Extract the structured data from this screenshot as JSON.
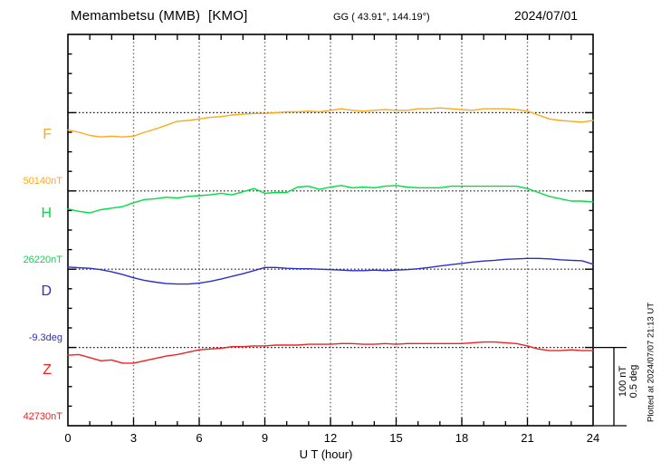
{
  "header": {
    "station_title": "Memambetsu (MMB)  [KMO]",
    "gg_coords": "GG ( 43.91°, 144.19°)",
    "date": "2024/07/01"
  },
  "axes": {
    "x_ticks": [
      "0",
      "3",
      "6",
      "9",
      "12",
      "15",
      "18",
      "21",
      "24"
    ],
    "x_label": "U T (hour)"
  },
  "scale_bar": {
    "label_nt": "100 nT",
    "label_deg": "0.5 deg"
  },
  "footer_note": "Plotted at 2024/07/07 21:13 UT",
  "chart_data": {
    "type": "line",
    "title": "Memambetsu (MMB) [KMO] magnetogram 2024/07/01",
    "xlabel": "U T (hour)",
    "x_range": [
      0,
      24
    ],
    "x_step": 0.5,
    "grid": "dotted vertical gridlines every 3 h; dotted horizontal baseline per component",
    "legend_position": "left margin, one colored label per trace",
    "scale_per_division": {
      "nT": 100,
      "deg": 0.5
    },
    "series": [
      {
        "name": "F",
        "label": "F",
        "baseline_label": "50140nT",
        "baseline_value": 50140,
        "unit": "nT",
        "color": "#ffa81e",
        "values": [
          50118,
          50115,
          50111,
          50109,
          50110,
          50109,
          50110,
          50115,
          50119,
          50124,
          50129,
          50130,
          50132,
          50134,
          50135,
          50137,
          50138,
          50139,
          50139,
          50140,
          50141,
          50141,
          50142,
          50141,
          50143,
          50145,
          50143,
          50142,
          50143,
          50144,
          50143,
          50143,
          50145,
          50145,
          50146,
          50145,
          50144,
          50143,
          50145,
          50145,
          50145,
          50144,
          50142,
          50137,
          50132,
          50130,
          50129,
          50128,
          50130
        ]
      },
      {
        "name": "H",
        "label": "H",
        "baseline_label": "26220nT",
        "baseline_value": 26220,
        "unit": "nT",
        "color": "#00dd44",
        "values": [
          26197,
          26194,
          26192,
          26196,
          26198,
          26200,
          26205,
          26209,
          26210,
          26212,
          26211,
          26213,
          26214,
          26215,
          26217,
          26215,
          26219,
          26223,
          26217,
          26218,
          26218,
          26225,
          26226,
          26222,
          26225,
          26227,
          26224,
          26225,
          26224,
          26226,
          26227,
          26225,
          26224,
          26224,
          26224,
          26226,
          26226,
          26226,
          26226,
          26226,
          26226,
          26226,
          26223,
          26218,
          26213,
          26210,
          26207,
          26207,
          26206
        ]
      },
      {
        "name": "D",
        "label": "D",
        "baseline_label": "-9.3deg",
        "baseline_value": -9.3,
        "unit": "deg",
        "color": "#2d2dcc",
        "values": [
          -9.286,
          -9.291,
          -9.294,
          -9.303,
          -9.317,
          -9.334,
          -9.355,
          -9.372,
          -9.383,
          -9.392,
          -9.395,
          -9.395,
          -9.389,
          -9.378,
          -9.363,
          -9.346,
          -9.329,
          -9.309,
          -9.289,
          -9.289,
          -9.294,
          -9.297,
          -9.297,
          -9.3,
          -9.303,
          -9.306,
          -9.309,
          -9.309,
          -9.306,
          -9.309,
          -9.306,
          -9.303,
          -9.297,
          -9.289,
          -9.28,
          -9.271,
          -9.263,
          -9.254,
          -9.248,
          -9.243,
          -9.237,
          -9.234,
          -9.231,
          -9.231,
          -9.234,
          -9.24,
          -9.243,
          -9.246,
          -9.268
        ]
      },
      {
        "name": "Z",
        "label": "Z",
        "baseline_label": "42730nT",
        "baseline_value": 42730,
        "unit": "nT",
        "color": "#ee2222",
        "values": [
          42720,
          42721,
          42717,
          42713,
          42714,
          42710,
          42710,
          42713,
          42716,
          42719,
          42721,
          42724,
          42727,
          42728,
          42729,
          42731,
          42731,
          42732,
          42732,
          42733,
          42733,
          42733,
          42734,
          42734,
          42734,
          42735,
          42735,
          42734,
          42734,
          42735,
          42734,
          42735,
          42735,
          42735,
          42735,
          42735,
          42735,
          42736,
          42737,
          42737,
          42736,
          42735,
          42732,
          42728,
          42726,
          42726,
          42727,
          42726,
          42726
        ]
      }
    ]
  }
}
